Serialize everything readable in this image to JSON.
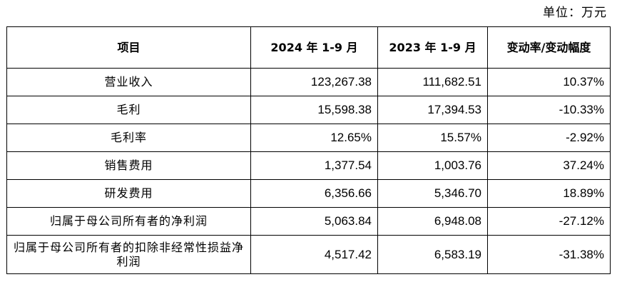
{
  "unit_label": "单位：万元",
  "table": {
    "headers": [
      "项目",
      "2024 年 1-9 月",
      "2023 年 1-9 月",
      "变动率/变动幅度"
    ],
    "rows": [
      {
        "item": "营业收入",
        "y2024": "123,267.38",
        "y2023": "111,682.51",
        "change": "10.37%"
      },
      {
        "item": "毛利",
        "y2024": "15,598.38",
        "y2023": "17,394.53",
        "change": "-10.33%"
      },
      {
        "item": "毛利率",
        "y2024": "12.65%",
        "y2023": "15.57%",
        "change": "-2.92%"
      },
      {
        "item": "销售费用",
        "y2024": "1,377.54",
        "y2023": "1,003.76",
        "change": "37.24%"
      },
      {
        "item": "研发费用",
        "y2024": "6,356.66",
        "y2023": "5,346.70",
        "change": "18.89%"
      },
      {
        "item": "归属于母公司所有者的净利润",
        "y2024": "5,063.84",
        "y2023": "6,948.08",
        "change": "-27.12%"
      },
      {
        "item": "归属于母公司所有者的扣除非经常性损益净利润",
        "y2024": "4,517.42",
        "y2023": "6,583.19",
        "change": "-31.38%"
      }
    ]
  }
}
